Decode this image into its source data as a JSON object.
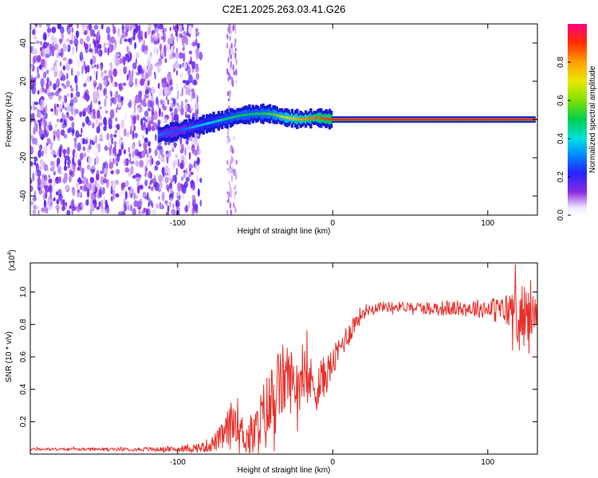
{
  "title": "C2E1.2025.263.03.41.G26",
  "chart_data": [
    {
      "type": "heatmap",
      "xlabel": "Height of straight line (km)",
      "ylabel": "Frequency (Hz)",
      "xlim": [
        -195,
        132
      ],
      "ylim": [
        -50,
        50
      ],
      "xticks": [
        -100,
        0,
        100
      ],
      "yticks": [
        -40,
        -20,
        0,
        20,
        40
      ],
      "colorbar": {
        "label": "Normalized spectral amplitude",
        "range": [
          0,
          1
        ],
        "ticks": [
          "0.0",
          "0.2",
          "0.4",
          "0.6",
          "0.8"
        ],
        "tick_values": [
          0.0,
          0.2,
          0.4,
          0.6,
          0.8
        ]
      },
      "ridge": [
        {
          "height": -112,
          "frequency": -8,
          "amplitude": 0.3
        },
        {
          "height": -100,
          "frequency": -6,
          "amplitude": 0.25
        },
        {
          "height": -90,
          "frequency": -4,
          "amplitude": 0.35
        },
        {
          "height": -80,
          "frequency": -2,
          "amplitude": 0.4
        },
        {
          "height": -70,
          "frequency": 0,
          "amplitude": 0.45
        },
        {
          "height": -60,
          "frequency": 2,
          "amplitude": 0.5
        },
        {
          "height": -50,
          "frequency": 3,
          "amplitude": 0.5
        },
        {
          "height": -40,
          "frequency": 3,
          "amplitude": 0.55
        },
        {
          "height": -30,
          "frequency": 1,
          "amplitude": 0.7
        },
        {
          "height": -20,
          "frequency": 0,
          "amplitude": 0.8
        },
        {
          "height": -10,
          "frequency": 1,
          "amplitude": 0.85
        },
        {
          "height": 0,
          "frequency": 0,
          "amplitude": 0.9
        },
        {
          "height": 50,
          "frequency": 0,
          "amplitude": 0.95
        },
        {
          "height": 100,
          "frequency": 0,
          "amplitude": 0.95
        },
        {
          "height": 130,
          "frequency": 0,
          "amplitude": 0.9
        }
      ]
    },
    {
      "type": "line",
      "xlabel": "Height of straight line (km)",
      "ylabel": "SNR (10 * v/v)",
      "yscale_label": "(x10",
      "yscale_exp": "4",
      "xlim": [
        -195,
        132
      ],
      "ylim": [
        0,
        1.18
      ],
      "xticks": [
        -100,
        0,
        100
      ],
      "yticks": [
        0.2,
        0.4,
        0.6,
        0.8,
        1.0
      ],
      "ytick_labels": [
        "0.2",
        "0.4",
        "0.6",
        "0.8",
        "1.0"
      ],
      "series": [
        {
          "name": "SNR",
          "color": "#e8302a",
          "x": [
            -195,
            -150,
            -100,
            -85,
            -78,
            -72,
            -68,
            -64,
            -62,
            -60,
            -55,
            -50,
            -45,
            -40,
            -35,
            -30,
            -25,
            -20,
            -15,
            -10,
            -5,
            0,
            5,
            10,
            15,
            20,
            25,
            30,
            40,
            50,
            60,
            70,
            80,
            90,
            100,
            110,
            115,
            120,
            125,
            132
          ],
          "y": [
            0.03,
            0.03,
            0.03,
            0.04,
            0.06,
            0.1,
            0.14,
            0.2,
            0.24,
            0.16,
            0.1,
            0.12,
            0.22,
            0.3,
            0.4,
            0.48,
            0.44,
            0.46,
            0.45,
            0.42,
            0.48,
            0.56,
            0.66,
            0.74,
            0.82,
            0.88,
            0.9,
            0.91,
            0.91,
            0.91,
            0.9,
            0.9,
            0.9,
            0.9,
            0.9,
            0.88,
            0.9,
            0.86,
            0.85,
            0.88
          ],
          "noise": [
            0.005,
            0.005,
            0.01,
            0.02,
            0.03,
            0.05,
            0.08,
            0.1,
            0.1,
            0.06,
            0.08,
            0.1,
            0.14,
            0.16,
            0.16,
            0.14,
            0.12,
            0.12,
            0.1,
            0.1,
            0.08,
            0.06,
            0.05,
            0.05,
            0.04,
            0.03,
            0.02,
            0.02,
            0.02,
            0.02,
            0.025,
            0.03,
            0.03,
            0.035,
            0.04,
            0.06,
            0.08,
            0.12,
            0.12,
            0.06
          ]
        }
      ]
    }
  ]
}
